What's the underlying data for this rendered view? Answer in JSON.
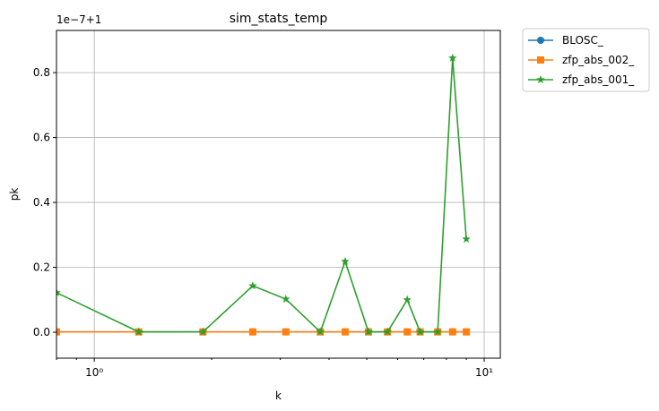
{
  "chart_data": {
    "type": "line",
    "title": "sim_stats_temp",
    "xlabel": "k",
    "ylabel": "pk",
    "offset_text": "1e−7+1",
    "x_scale": "log",
    "xlim": [
      0.8,
      11.0
    ],
    "ylim": [
      -0.08,
      0.93
    ],
    "x_ticks": [
      {
        "value": 1,
        "label": "10⁰"
      },
      {
        "value": 10,
        "label": "10¹"
      }
    ],
    "y_ticks": [
      {
        "value": 0.0,
        "label": "0.0"
      },
      {
        "value": 0.2,
        "label": "0.2"
      },
      {
        "value": 0.4,
        "label": "0.4"
      },
      {
        "value": 0.6,
        "label": "0.6"
      },
      {
        "value": 0.8,
        "label": "0.8"
      }
    ],
    "grid": true,
    "legend_position": "outside-upper-right",
    "series": [
      {
        "name": "BLOSC_",
        "color": "#1f77b4",
        "marker": "circle",
        "x": [
          0.8,
          1.3,
          1.9,
          2.55,
          3.1,
          3.8,
          4.4,
          5.05,
          5.65,
          6.35,
          6.85,
          7.6,
          8.3,
          9.0
        ],
        "y": [
          0.001,
          0.001,
          0.001,
          0.001,
          0.001,
          0.001,
          0.001,
          0.001,
          0.001,
          0.001,
          0.001,
          0.001,
          0.001,
          0.001
        ]
      },
      {
        "name": "zfp_abs_002_",
        "color": "#ff7f0e",
        "marker": "square",
        "x": [
          0.8,
          1.3,
          1.9,
          2.55,
          3.1,
          3.8,
          4.4,
          5.05,
          5.65,
          6.35,
          6.85,
          7.6,
          8.3,
          9.0
        ],
        "y": [
          0.001,
          0.001,
          0.001,
          0.001,
          0.001,
          0.001,
          0.001,
          0.001,
          0.001,
          0.001,
          0.001,
          0.001,
          0.001,
          0.001
        ]
      },
      {
        "name": "zfp_abs_001_",
        "color": "#2ca02c",
        "marker": "star",
        "x": [
          0.8,
          1.3,
          1.9,
          2.55,
          3.1,
          3.8,
          4.4,
          5.05,
          5.65,
          6.35,
          6.85,
          7.6,
          8.3,
          9.0
        ],
        "y": [
          0.122,
          0.001,
          0.001,
          0.143,
          0.102,
          0.001,
          0.218,
          0.001,
          0.001,
          0.1,
          0.001,
          0.001,
          0.845,
          0.287
        ]
      }
    ]
  }
}
